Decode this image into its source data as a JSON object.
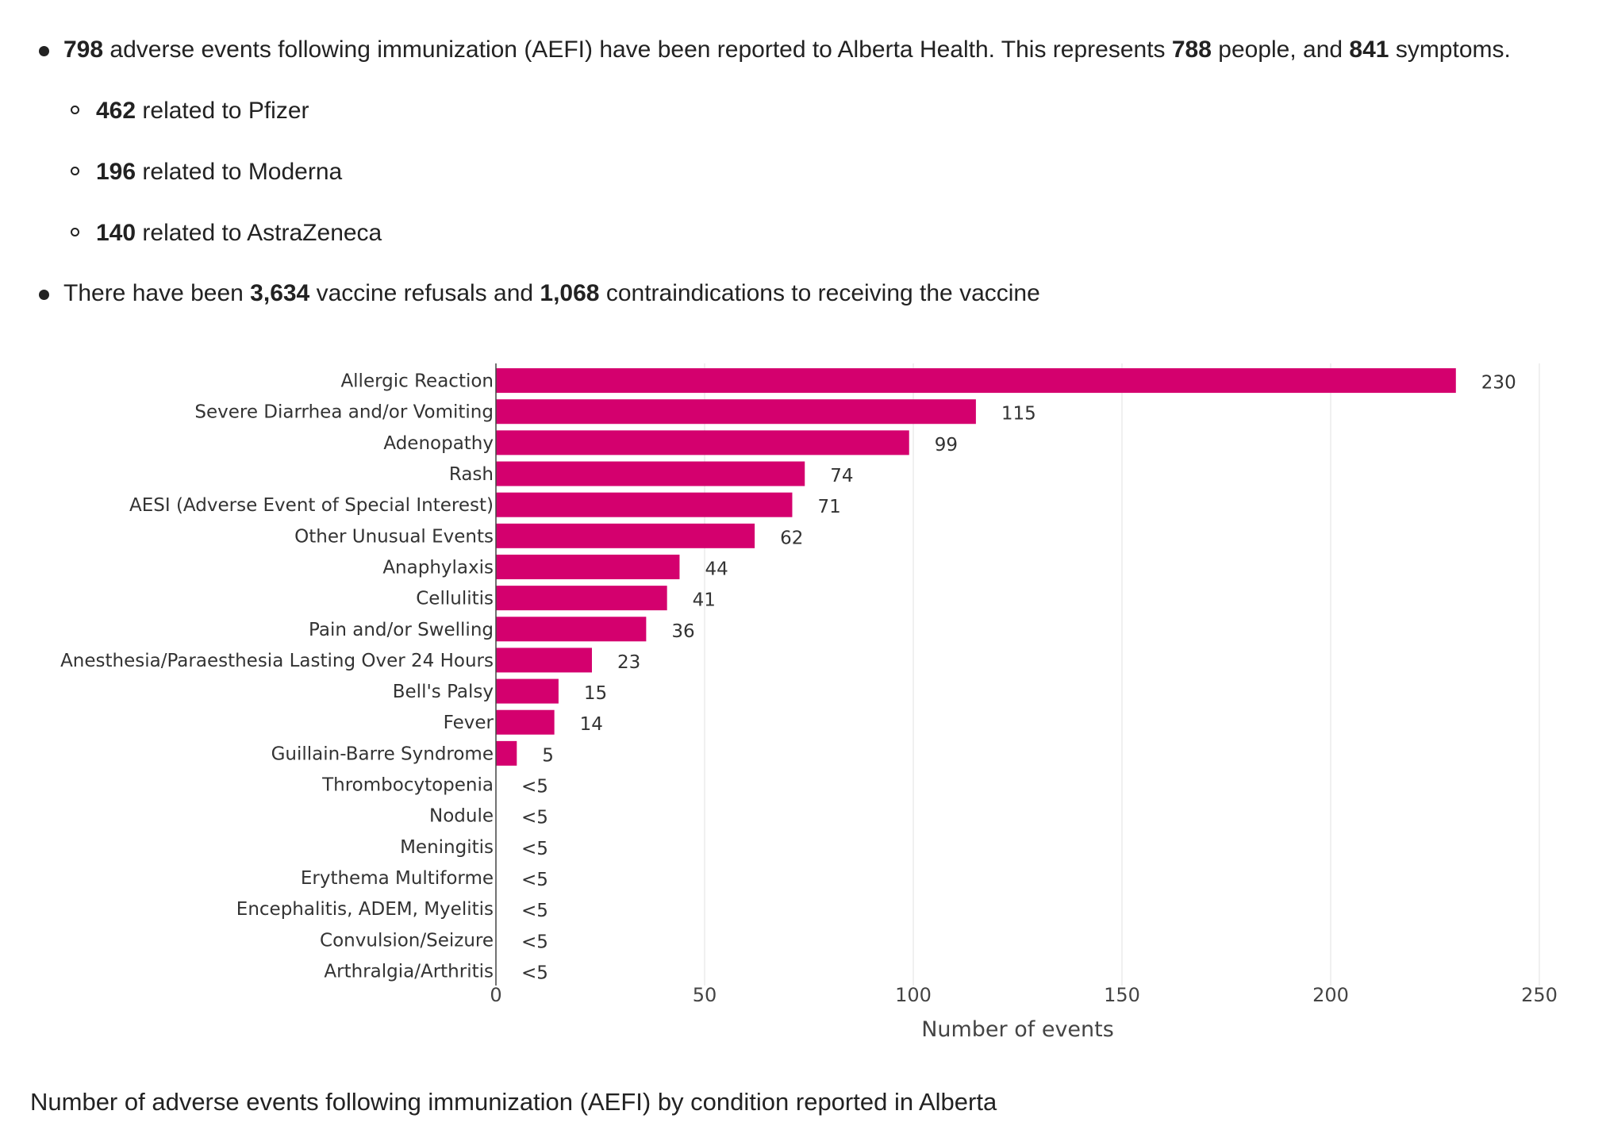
{
  "summary": {
    "aefi": {
      "count": "798",
      "text1": " adverse events following immunization (AEFI) have been reported to Alberta Health. This represents ",
      "people": "788",
      "text2": " people, and ",
      "symptoms": "841",
      "text3": " symptoms."
    },
    "pfizer": {
      "count": "462",
      "text": " related to Pfizer"
    },
    "moderna": {
      "count": "196",
      "text": " related to Moderna"
    },
    "astrazeneca": {
      "count": "140",
      "text": " related to AstraZeneca"
    },
    "refusals": {
      "text1": "There have been ",
      "refusals": "3,634",
      "text2": " vaccine refusals and ",
      "contra": "1,068",
      "text3": " contraindications to receiving the vaccine"
    }
  },
  "chart_data": {
    "type": "bar",
    "orientation": "horizontal",
    "categories": [
      "Allergic Reaction",
      "Severe Diarrhea and/or Vomiting",
      "Adenopathy",
      "Rash",
      "AESI (Adverse Event of Special Interest)",
      "Other Unusual Events",
      "Anaphylaxis",
      "Cellulitis",
      "Pain and/or Swelling",
      "Anesthesia/Paraesthesia Lasting Over 24 Hours",
      "Bell's Palsy",
      "Fever",
      "Guillain-Barre Syndrome",
      "Thrombocytopenia",
      "Nodule",
      "Meningitis",
      "Erythema Multiforme",
      "Encephalitis, ADEM, Myelitis",
      "Convulsion/Seizure",
      "Arthralgia/Arthritis"
    ],
    "values": [
      230,
      115,
      99,
      74,
      71,
      62,
      44,
      41,
      36,
      23,
      15,
      14,
      5,
      0,
      0,
      0,
      0,
      0,
      0,
      0
    ],
    "value_labels": [
      "230",
      "115",
      "99",
      "74",
      "71",
      "62",
      "44",
      "41",
      "36",
      "23",
      "15",
      "14",
      "5",
      "<5",
      "<5",
      "<5",
      "<5",
      "<5",
      "<5",
      "<5"
    ],
    "xlabel": "Number of events",
    "ylabel": "",
    "xlim": [
      0,
      250
    ],
    "xticks": [
      0,
      50,
      100,
      150,
      200,
      250
    ],
    "grid": "vertical",
    "bar_color": "#d4006e"
  },
  "caption": "Number of adverse events following immunization (AEFI) by condition reported in Alberta"
}
